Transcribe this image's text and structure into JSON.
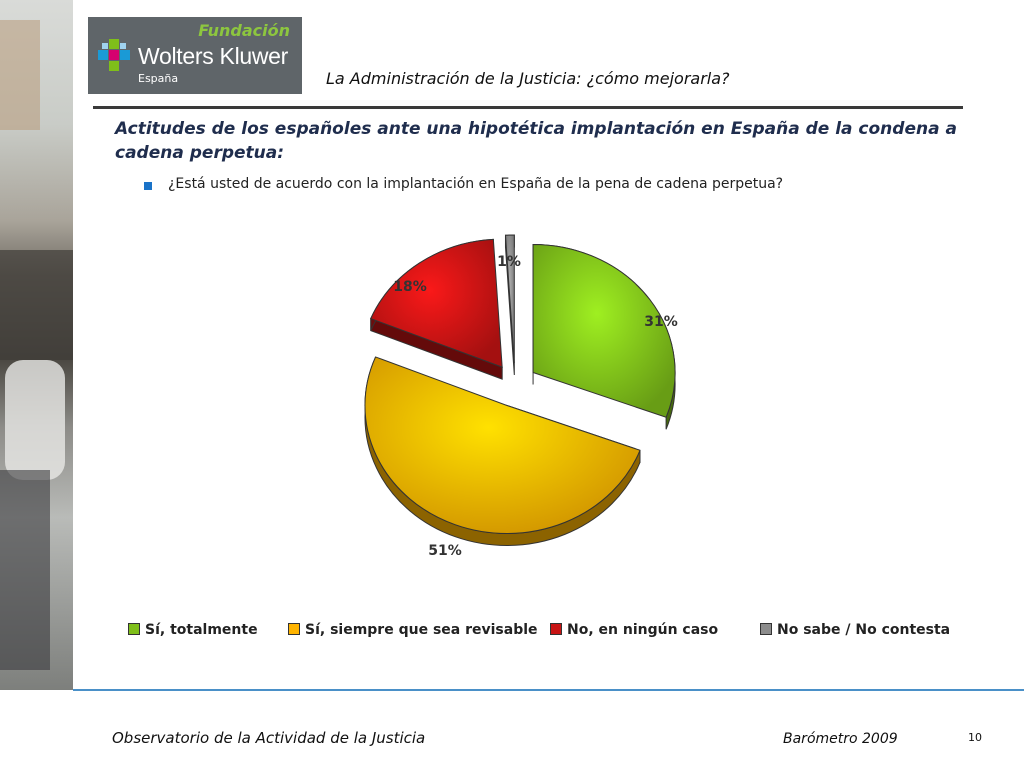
{
  "logo": {
    "top_text": "Fundación",
    "brand": "Wolters Kluwer",
    "region": "España"
  },
  "header": {
    "title": "La Administración de la Justicia: ¿cómo mejorarla?"
  },
  "subtitle": "Actitudes de los españoles ante una hipotética implantación en España de la condena a cadena perpetua:",
  "question": "¿Está usted de acuerdo con la implantación en España de la pena de cadena perpetua?",
  "colors": {
    "green": "#7fbf1a",
    "orange": "#ffb400",
    "red": "#c81414",
    "gray": "#8c8c8c",
    "accent_blue": "#1a73c8"
  },
  "chart_data": {
    "type": "pie",
    "title": "",
    "categories": [
      "Sí, totalmente",
      "Sí, siempre que sea revisable",
      "No, en ningún caso",
      "No sabe / No contesta"
    ],
    "values": [
      31,
      51,
      18,
      1
    ],
    "labels": [
      "31%",
      "51%",
      "18%",
      "1%"
    ],
    "colors": [
      "#7fbf1a",
      "#ffb400",
      "#c81414",
      "#8c8c8c"
    ],
    "legend_position": "bottom",
    "exploded": true
  },
  "footer": {
    "left": "Observatorio de la Actividad de la Justicia",
    "right": "Barómetro 2009",
    "page": "10"
  }
}
